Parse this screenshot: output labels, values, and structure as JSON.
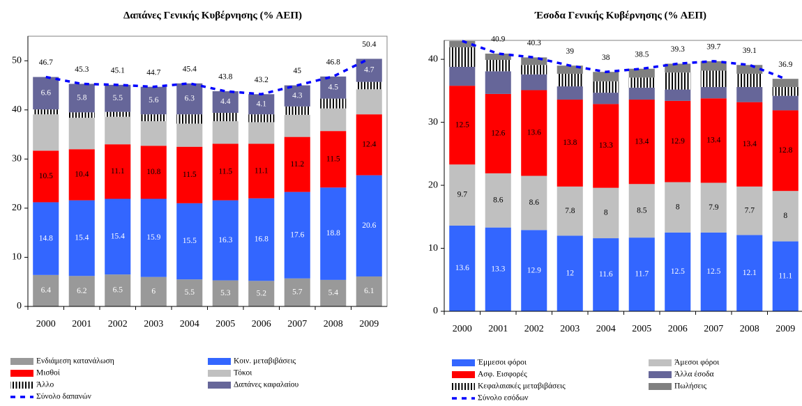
{
  "chart_data": [
    {
      "type": "stacked_bar",
      "title": "Δαπάνες Γενικής Κυβέρνησης (% ΑΕΠ)",
      "categories": [
        "2000",
        "2001",
        "2002",
        "2003",
        "2004",
        "2005",
        "2006",
        "2007",
        "2008",
        "2009"
      ],
      "ylim": [
        0,
        55
      ],
      "yticks": [
        0,
        10,
        20,
        30,
        40,
        50
      ],
      "series": [
        {
          "name": "Ενδιάμεση κατανάλωση",
          "color": "#999999",
          "label_color": "#ffffff",
          "labeled": true,
          "values": [
            6.4,
            6.2,
            6.5,
            6,
            5.5,
            5.3,
            5.2,
            5.7,
            5.4,
            6.1
          ]
        },
        {
          "name": "Κοιν. μεταβιβάσεις",
          "color": "#3366ff",
          "label_color": "#ffffff",
          "labeled": true,
          "values": [
            14.8,
            15.4,
            15.4,
            15.9,
            15.5,
            16.3,
            16.8,
            17.6,
            18.8,
            20.6
          ]
        },
        {
          "name": "Μισθοί",
          "color": "#ff0000",
          "label_color": "#000000",
          "labeled": true,
          "values": [
            10.5,
            10.4,
            11.1,
            10.8,
            11.5,
            11.5,
            11.1,
            11.2,
            11.5,
            12.4
          ]
        },
        {
          "name": "Τόκοι",
          "color": "#c0c0c0",
          "labeled": false,
          "values": [
            7.4,
            6.4,
            5.6,
            5.0,
            4.7,
            4.6,
            4.4,
            4.5,
            4.6,
            5.1
          ]
        },
        {
          "name": "Άλλο",
          "color": "#000000",
          "pattern": "hatch",
          "labeled": false,
          "values": [
            1.0,
            1.1,
            1.0,
            1.4,
            1.9,
            1.7,
            1.6,
            1.7,
            2.0,
            1.5
          ]
        },
        {
          "name": "Δαπάνες καφαλαίου",
          "color": "#666699",
          "label_color": "#ffffff",
          "labeled": true,
          "values": [
            6.6,
            5.8,
            5.5,
            5.6,
            6.3,
            4.4,
            4.1,
            4.3,
            4.5,
            4.7
          ]
        }
      ],
      "total": {
        "name": "Σύνολο δαπανών",
        "color": "#0000ff",
        "values": [
          46.7,
          45.3,
          45.1,
          44.7,
          45.4,
          43.8,
          43.2,
          45,
          46.8,
          50.4
        ]
      }
    },
    {
      "type": "stacked_bar",
      "title": "Έσοδα Γενικής Κυβέρνησης (% ΑΕΠ)",
      "categories": [
        "2000",
        "2001",
        "2002",
        "2003",
        "2004",
        "2005",
        "2006",
        "2007",
        "2008",
        "2009"
      ],
      "ylim": [
        0,
        43
      ],
      "yticks": [
        0,
        10,
        20,
        30,
        40
      ],
      "series": [
        {
          "name": "Έμμεσοι φόροι",
          "color": "#3366ff",
          "label_color": "#ffffff",
          "labeled": true,
          "values": [
            13.6,
            13.3,
            12.9,
            12,
            11.6,
            11.7,
            12.5,
            12.5,
            12.1,
            11.1
          ]
        },
        {
          "name": "Άμεσοι φόροι",
          "color": "#c0c0c0",
          "label_color": "#000000",
          "labeled": true,
          "values": [
            9.7,
            8.6,
            8.6,
            7.8,
            8,
            8.5,
            8,
            7.9,
            7.7,
            8
          ]
        },
        {
          "name": "Ασφ. Εισφορές",
          "color": "#ff0000",
          "label_color": "#000000",
          "labeled": true,
          "values": [
            12.5,
            12.6,
            13.6,
            13.8,
            13.3,
            13.4,
            12.9,
            13.4,
            13.4,
            12.8
          ]
        },
        {
          "name": "Άλλα έσοδα",
          "color": "#666699",
          "labeled": false,
          "values": [
            3.0,
            3.6,
            2.5,
            2.1,
            1.8,
            1.9,
            1.8,
            1.8,
            2.4,
            2.3
          ]
        },
        {
          "name": "Κεφαλαιακές μεταβιβάσεις",
          "color": "#000000",
          "pattern": "hatch",
          "labeled": false,
          "values": [
            3.1,
            1.8,
            1.5,
            2.0,
            1.8,
            1.6,
            2.7,
            2.6,
            2.1,
            1.4
          ]
        },
        {
          "name": "Πωλήσεις",
          "color": "#808080",
          "labeled": false,
          "values": [
            1.0,
            1.0,
            1.2,
            1.3,
            1.5,
            1.4,
            1.4,
            1.5,
            1.4,
            1.3
          ]
        }
      ],
      "total": {
        "name": "Σύνολο εσόδων",
        "color": "#0000ff",
        "values": [
          42.9,
          40.9,
          40.3,
          39,
          38,
          38.5,
          39.3,
          39.7,
          39.1,
          36.9
        ],
        "value_labels": [
          null,
          "40.9",
          "40.3",
          "39",
          "38",
          "38.5",
          "39.3",
          "39.7",
          "39.1",
          "36.9"
        ]
      }
    }
  ]
}
